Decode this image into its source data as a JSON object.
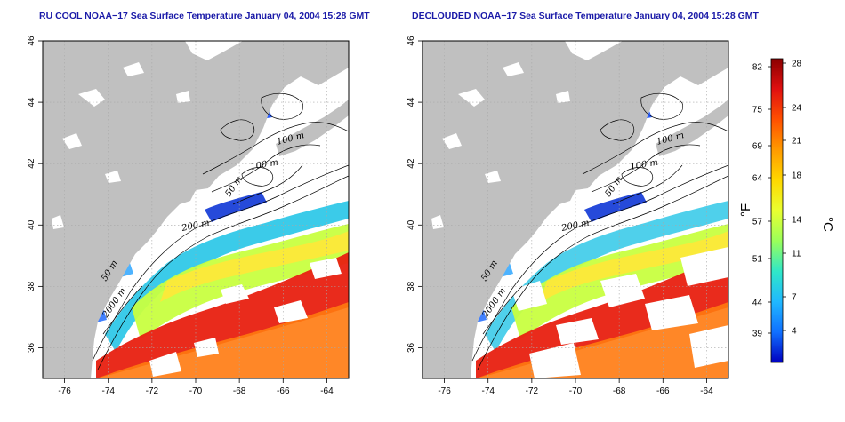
{
  "panels": [
    {
      "title": "RU COOL NOAA−17 Sea Surface Temperature January 04, 2004 15:28 GMT",
      "x_ticks": [
        "-76",
        "-74",
        "-72",
        "-70",
        "-68",
        "-66",
        "-64"
      ],
      "y_ticks": [
        "36",
        "38",
        "40",
        "42",
        "44",
        "46"
      ],
      "contour_labels": [
        "100 m",
        "100 m",
        "50 m",
        "200 m",
        "50 m",
        "2000 m"
      ],
      "variant": "cool"
    },
    {
      "title": "DECLOUDED NOAA−17 Sea Surface Temperature January 04, 2004 15:28 GMT",
      "x_ticks": [
        "-76",
        "-74",
        "-72",
        "-70",
        "-68",
        "-66",
        "-64"
      ],
      "y_ticks": [
        "36",
        "38",
        "40",
        "42",
        "44",
        "46"
      ],
      "contour_labels": [
        "100 m",
        "100 m",
        "50 m",
        "200 m",
        "50 m",
        "2000 m"
      ],
      "variant": "declouded"
    }
  ],
  "colorbar": {
    "fahrenheit_ticks": [
      "82",
      "75",
      "69",
      "64",
      "57",
      "51",
      "44",
      "39"
    ],
    "celsius_ticks": [
      "28",
      "24",
      "21",
      "18",
      "14",
      "11",
      "7",
      "4"
    ],
    "left_unit": "°F",
    "right_unit": "°C",
    "colors": [
      "#8b0000",
      "#e01010",
      "#ff5000",
      "#ff9a00",
      "#ffd800",
      "#eaff30",
      "#9aff5a",
      "#30e8c8",
      "#20b8ff",
      "#1070ff",
      "#0000c0"
    ]
  },
  "map_colors": {
    "land": "#c0c0c0",
    "background": "#ffffff",
    "grid": "#a8a8a8"
  },
  "map_extent": {
    "lon": [
      -77,
      -63
    ],
    "lat": [
      35,
      46
    ]
  }
}
